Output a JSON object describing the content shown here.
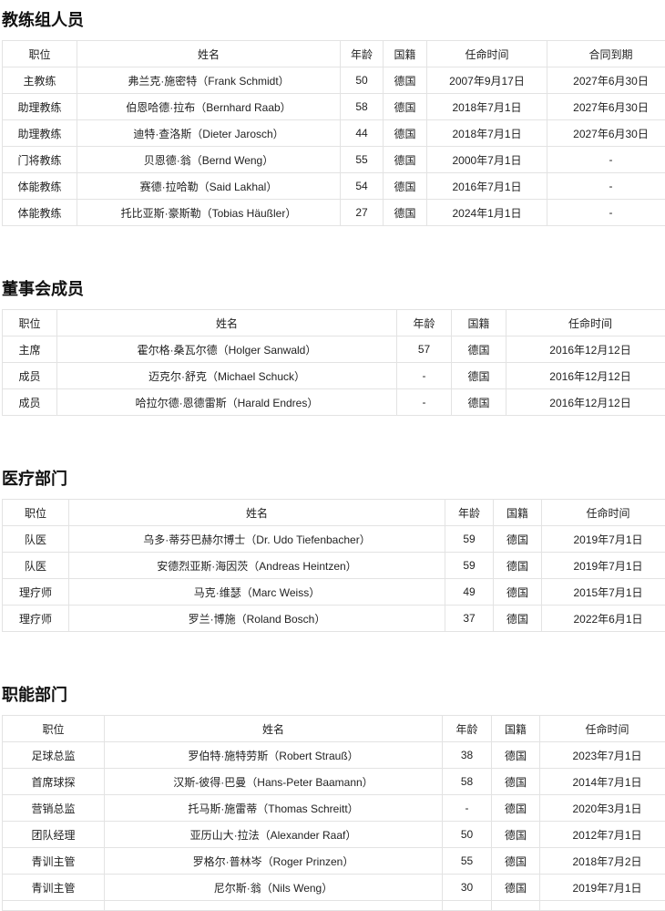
{
  "sections": [
    {
      "title": "教练组人员",
      "headers": [
        "职位",
        "姓名",
        "年龄",
        "国籍",
        "任命时间",
        "合同到期"
      ],
      "rows": [
        [
          "主教练",
          "弗兰克·施密特（Frank Schmidt）",
          "50",
          "德国",
          "2007年9月17日",
          "2027年6月30日"
        ],
        [
          "助理教练",
          "伯恩哈德·拉布（Bernhard Raab）",
          "58",
          "德国",
          "2018年7月1日",
          "2027年6月30日"
        ],
        [
          "助理教练",
          "迪特·查洛斯（Dieter Jarosch）",
          "44",
          "德国",
          "2018年7月1日",
          "2027年6月30日"
        ],
        [
          "门将教练",
          "贝恩德·翁（Bernd Weng）",
          "55",
          "德国",
          "2000年7月1日",
          "-"
        ],
        [
          "体能教练",
          "赛德·拉哈勒（Said Lakhal）",
          "54",
          "德国",
          "2016年7月1日",
          "-"
        ],
        [
          "体能教练",
          "托比亚斯·豪斯勒（Tobias Häußler）",
          "27",
          "德国",
          "2024年1月1日",
          "-"
        ]
      ]
    },
    {
      "title": "董事会成员",
      "headers": [
        "职位",
        "姓名",
        "年龄",
        "国籍",
        "任命时间"
      ],
      "rows": [
        [
          "主席",
          "霍尔格·桑瓦尔德（Holger Sanwald）",
          "57",
          "德国",
          "2016年12月12日"
        ],
        [
          "成员",
          "迈克尔·舒克（Michael Schuck）",
          "-",
          "德国",
          "2016年12月12日"
        ],
        [
          "成员",
          "哈拉尔德·恩德雷斯（Harald Endres）",
          "-",
          "德国",
          "2016年12月12日"
        ]
      ]
    },
    {
      "title": "医疗部门",
      "headers": [
        "职位",
        "姓名",
        "年龄",
        "国籍",
        "任命时间"
      ],
      "rows": [
        [
          "队医",
          "乌多·蒂芬巴赫尔博士（Dr. Udo Tiefenbacher）",
          "59",
          "德国",
          "2019年7月1日"
        ],
        [
          "队医",
          "安德烈亚斯·海因茨（Andreas Heintzen）",
          "59",
          "德国",
          "2019年7月1日"
        ],
        [
          "理疗师",
          "马克·维瑟（Marc Weiss）",
          "49",
          "德国",
          "2015年7月1日"
        ],
        [
          "理疗师",
          "罗兰·博施（Roland Bosch）",
          "37",
          "德国",
          "2022年6月1日"
        ]
      ]
    },
    {
      "title": "职能部门",
      "headers": [
        "职位",
        "姓名",
        "年龄",
        "国籍",
        "任命时间"
      ],
      "rows": [
        [
          "足球总监",
          "罗伯特·施特劳斯（Robert Strauß）",
          "38",
          "德国",
          "2023年7月1日"
        ],
        [
          "首席球探",
          "汉斯-彼得·巴曼（Hans-Peter Baamann）",
          "58",
          "德国",
          "2014年7月1日"
        ],
        [
          "营销总监",
          "托马斯·施雷蒂（Thomas Schreitt）",
          "-",
          "德国",
          "2020年3月1日"
        ],
        [
          "团队经理",
          "亚历山大·拉法（Alexander Raaf）",
          "50",
          "德国",
          "2012年7月1日"
        ],
        [
          "青训主管",
          "罗格尔·普林岑（Roger Prinzen）",
          "55",
          "德国",
          "2018年7月2日"
        ],
        [
          "青训主管",
          "尼尔斯·翁（Nils Weng）",
          "30",
          "德国",
          "2019年7月1日"
        ]
      ]
    }
  ]
}
